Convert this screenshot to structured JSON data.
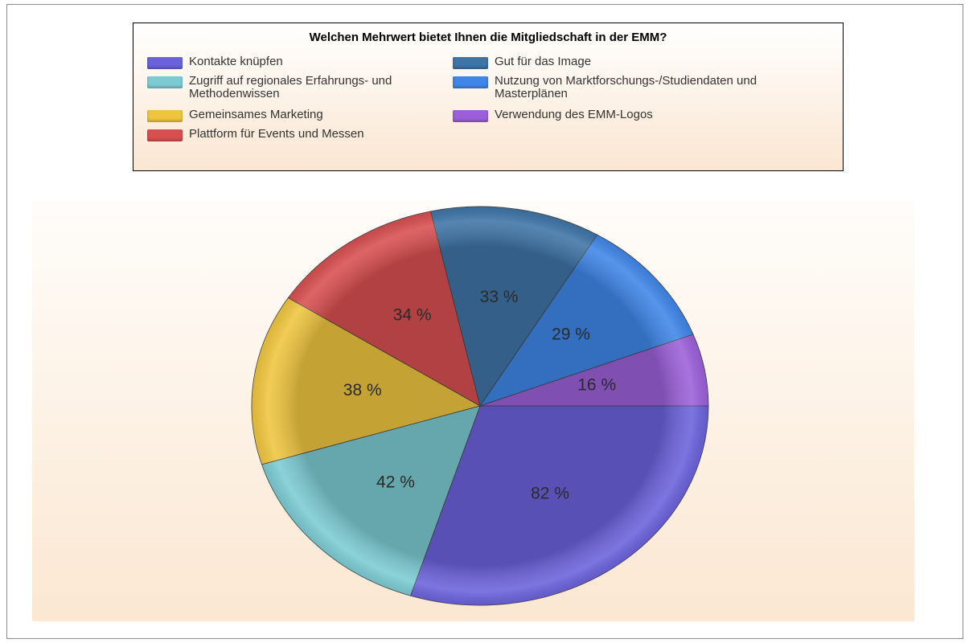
{
  "chart_data": {
    "type": "pie",
    "title": "Welchen Mehrwert bietet Ihnen die Mitgliedschaft in der EMM?",
    "categories": [
      "Kontakte knüpfen",
      "Zugriff auf regionales Erfahrungs- und Methodenwissen",
      "Gemeinsames Marketing",
      "Plattform für Events und Messen",
      "Gut für das Image",
      "Nutzung von Marktforschungs-/Studiendaten und Masterplänen",
      "Verwendung des EMM-Logos"
    ],
    "values": [
      82,
      42,
      38,
      34,
      33,
      29,
      16
    ],
    "value_labels": [
      "82 %",
      "42 %",
      "38 %",
      "34 %",
      "33 %",
      "29 %",
      "16 %"
    ],
    "colors": [
      "#6b62db",
      "#7ccbd3",
      "#efc53f",
      "#d84f50",
      "#3e74a6",
      "#3f86e8",
      "#9b60d9"
    ],
    "legend": "top"
  }
}
